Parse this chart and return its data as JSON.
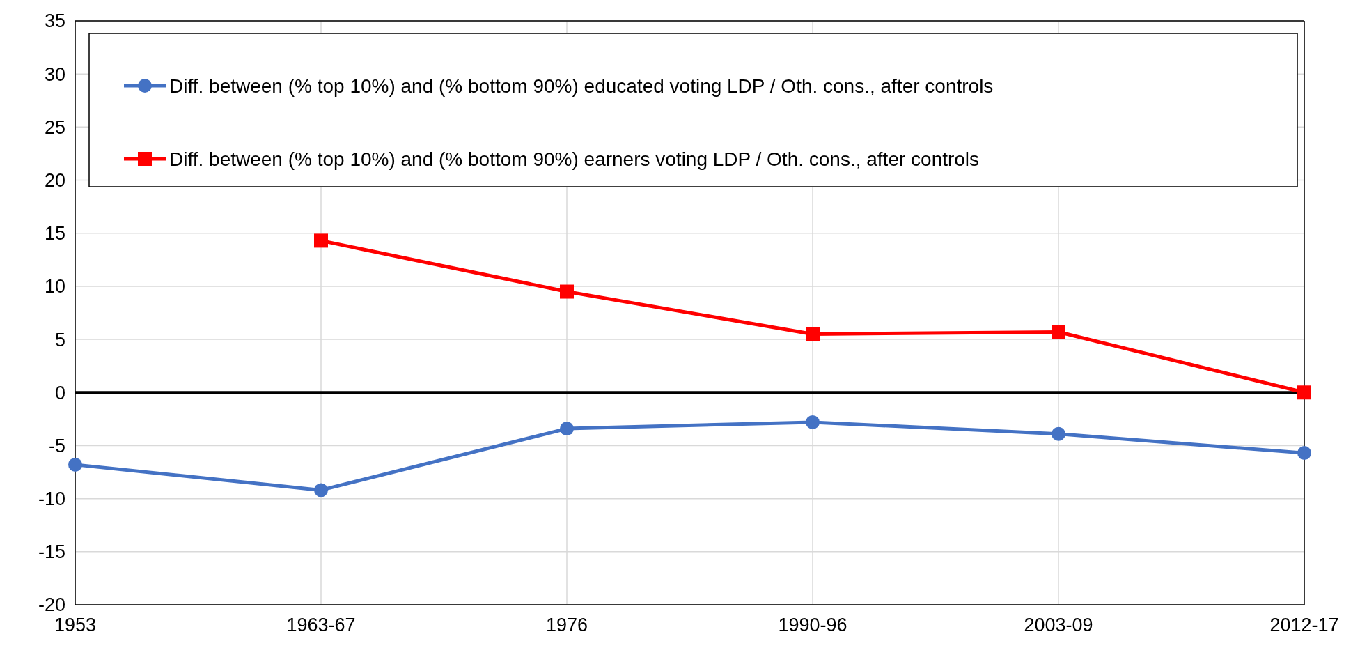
{
  "chart_data": {
    "type": "line",
    "categories": [
      "1953",
      "1963-67",
      "1976",
      "1990-96",
      "2003-09",
      "2012-17"
    ],
    "series": [
      {
        "name": "Diff. between (% top 10%) and (% bottom 90%) educated voting LDP / Oth. cons., after controls",
        "color": "#4472c4",
        "marker": "circle",
        "values": [
          -6.8,
          -9.2,
          -3.4,
          -2.8,
          -3.9,
          -5.7
        ]
      },
      {
        "name": "Diff. between (% top 10%) and (% bottom 90%) earners voting LDP / Oth. cons., after controls",
        "color": "#ff0000",
        "marker": "square",
        "values": [
          null,
          14.3,
          9.5,
          5.5,
          5.7,
          0.0
        ]
      }
    ],
    "ylim": [
      -20,
      35
    ],
    "yticks": [
      -20,
      -15,
      -10,
      -5,
      0,
      5,
      10,
      15,
      20,
      25,
      30,
      35
    ],
    "grid": true,
    "legend": "top",
    "ref_lines": [
      {
        "axis": "y",
        "value": 0,
        "color": "#000000"
      }
    ]
  }
}
